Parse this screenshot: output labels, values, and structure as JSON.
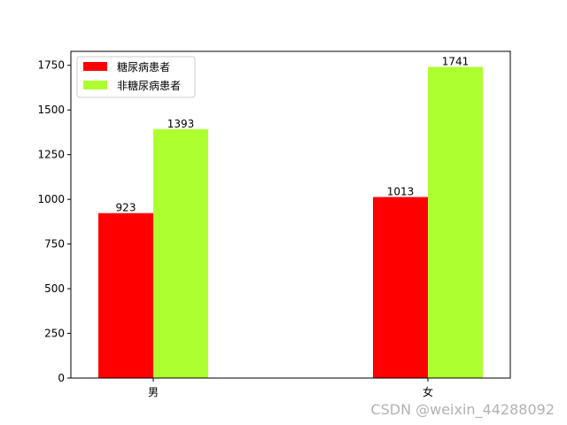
{
  "chart_data": {
    "type": "bar",
    "categories": [
      "男",
      "女"
    ],
    "series": [
      {
        "name": "糖尿病患者",
        "values": [
          923,
          1013
        ],
        "color": "#ff0000"
      },
      {
        "name": "非糖尿病患者",
        "values": [
          1393,
          1741
        ],
        "color": "#adff2f"
      }
    ],
    "title": "",
    "xlabel": "",
    "ylabel": "",
    "ylim": [
      0,
      1828
    ],
    "yticks": [
      0,
      250,
      500,
      750,
      1000,
      1250,
      1500,
      1750
    ],
    "grid": false,
    "legend": "upper-left"
  },
  "watermark": "CSDN @weixin_44288092"
}
